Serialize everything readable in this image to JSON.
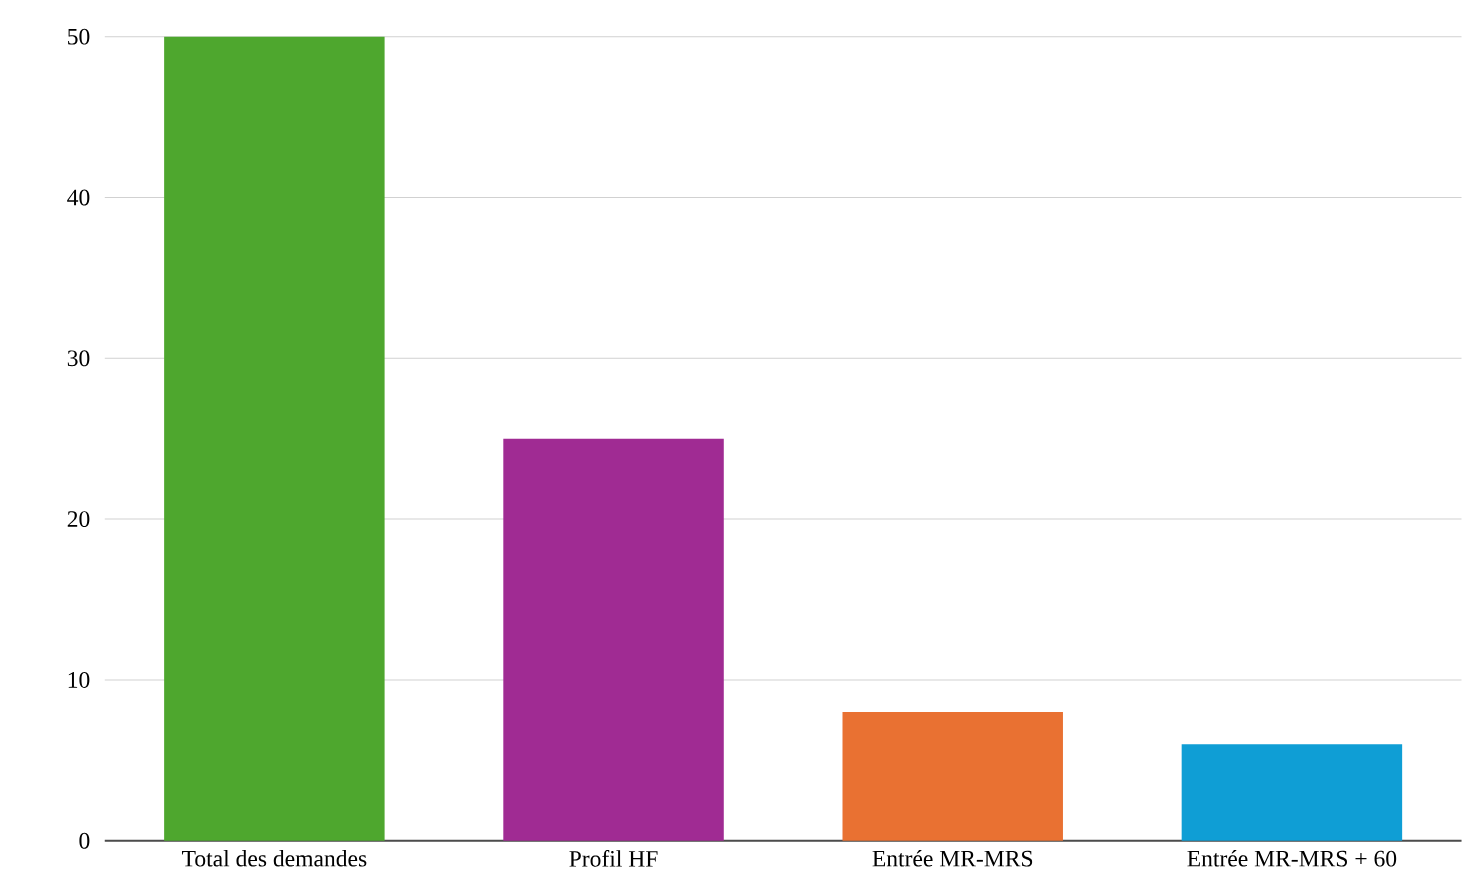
{
  "chart_data": {
    "type": "bar",
    "categories": [
      "Total des demandes",
      "Profil HF",
      "Entrée MR-MRS",
      "Entrée MR-MRS + 60"
    ],
    "values": [
      50,
      25,
      8,
      6
    ],
    "colors": [
      "#4ea72e",
      "#a02b93",
      "#e97132",
      "#0f9ed5"
    ],
    "ylim": [
      0,
      50
    ],
    "yticks": [
      0,
      10,
      20,
      30,
      40,
      50
    ],
    "grid": "y"
  }
}
